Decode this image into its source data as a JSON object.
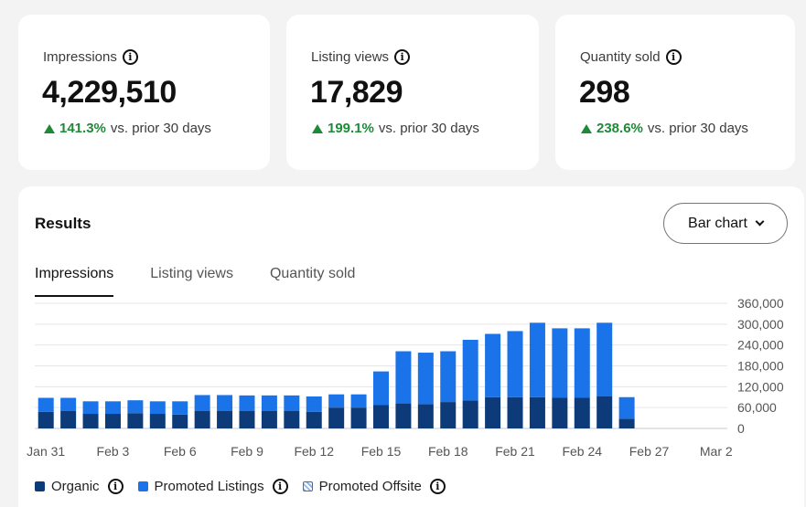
{
  "stats": [
    {
      "label": "Impressions",
      "value": "4,229,510",
      "change_pct": "141.3%",
      "change_text": "vs. prior 30 days"
    },
    {
      "label": "Listing views",
      "value": "17,829",
      "change_pct": "199.1%",
      "change_text": "vs. prior 30 days"
    },
    {
      "label": "Quantity sold",
      "value": "298",
      "change_pct": "238.6%",
      "change_text": "vs. prior 30 days"
    }
  ],
  "results": {
    "title": "Results",
    "chart_type_select": "Bar chart",
    "tabs": [
      "Impressions",
      "Listing views",
      "Quantity sold"
    ],
    "active_tab": "Impressions"
  },
  "icons": {
    "info": "info-icon",
    "trend_up": "up-arrow-icon",
    "dropdown": "chevron-down-icon"
  },
  "colors": {
    "organic": "#0d3a78",
    "promoted_listings": "#1a73e8",
    "promoted_offsite": "#8fb8ef",
    "positive": "#1e8a38"
  },
  "legend": [
    "Organic",
    "Promoted Listings",
    "Promoted Offsite"
  ],
  "chart_data": {
    "type": "bar",
    "stacked": true,
    "x_tick_labels": [
      "Jan 31",
      "Feb 3",
      "Feb 6",
      "Feb 9",
      "Feb 12",
      "Feb 15",
      "Feb 18",
      "Feb 21",
      "Feb 24",
      "Feb 27",
      "Mar 2"
    ],
    "y_tick_labels": [
      "0",
      "60,000",
      "120,000",
      "180,000",
      "240,000",
      "300,000",
      "360,000"
    ],
    "ylim": [
      0,
      360000
    ],
    "y_axis_position": "right",
    "grid": true,
    "categories": [
      "Jan 31",
      "Feb 1",
      "Feb 2",
      "Feb 3",
      "Feb 4",
      "Feb 5",
      "Feb 6",
      "Feb 7",
      "Feb 8",
      "Feb 9",
      "Feb 10",
      "Feb 11",
      "Feb 12",
      "Feb 13",
      "Feb 14",
      "Feb 15",
      "Feb 16",
      "Feb 17",
      "Feb 18",
      "Feb 19",
      "Feb 20",
      "Feb 21",
      "Feb 22",
      "Feb 23",
      "Feb 24",
      "Feb 25",
      "Feb 26",
      "Feb 27",
      "Feb 28",
      "Mar 1",
      "Mar 2"
    ],
    "series": [
      {
        "name": "Organic",
        "values": [
          48000,
          50000,
          42000,
          42000,
          44000,
          42000,
          40000,
          50000,
          50000,
          50000,
          50000,
          50000,
          48000,
          60000,
          60000,
          68000,
          72000,
          70000,
          76000,
          80000,
          90000,
          90000,
          90000,
          88000,
          88000,
          92000,
          28000,
          0,
          0,
          0,
          0
        ]
      },
      {
        "name": "Promoted Listings",
        "values": [
          40000,
          38000,
          36000,
          36000,
          37000,
          36000,
          38000,
          46000,
          46000,
          45000,
          45000,
          45000,
          44000,
          38000,
          38000,
          96000,
          150000,
          148000,
          146000,
          175000,
          182000,
          190000,
          214000,
          200000,
          200000,
          212000,
          62000,
          0,
          0,
          0,
          0
        ]
      },
      {
        "name": "Promoted Offsite",
        "values": [
          0,
          0,
          0,
          0,
          0,
          0,
          0,
          0,
          0,
          0,
          0,
          0,
          0,
          0,
          0,
          0,
          0,
          0,
          0,
          0,
          0,
          0,
          0,
          0,
          0,
          0,
          0,
          0,
          0,
          0,
          0
        ]
      }
    ]
  }
}
